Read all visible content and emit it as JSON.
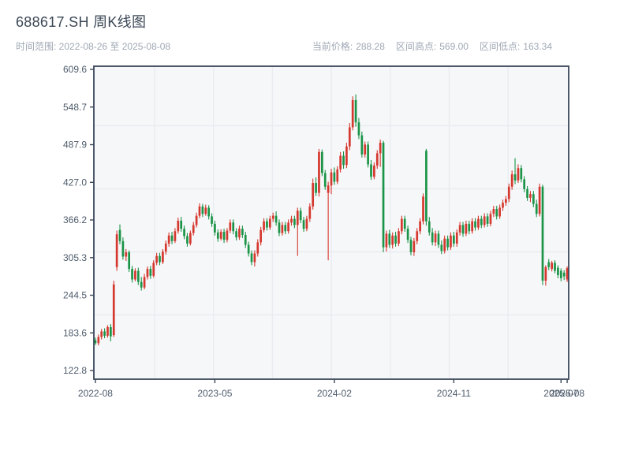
{
  "header": {
    "title": "688617.SH 周K线图",
    "subtitle": "时间范围: 2022-08-26 至 2025-08-08",
    "stats": {
      "current_label": "当前价格:",
      "current_value": "288.28",
      "high_label": "区间高点:",
      "high_value": "569.00",
      "low_label": "区间低点:",
      "low_value": "163.34"
    }
  },
  "colors": {
    "up": "#d5382e",
    "down": "#1b9447",
    "plot_bg": "#f6f7f9",
    "grid": "#e9ecf1",
    "spine": "#3a4759",
    "tick_label": "#4e5b6b",
    "title_text": "#3c4856",
    "muted_text": "#9fa8b4"
  },
  "chart_data": {
    "type": "candlestick",
    "title": "688617.SH 周K线图",
    "period": "weekly",
    "start_date": "2022-08-26",
    "end_date": "2025-08-08",
    "current_price": 288.28,
    "range_high": 569.0,
    "range_low": 163.34,
    "ylim": [
      112,
      616
    ],
    "grid": "on",
    "y_ticks": [
      609.6,
      548.7,
      487.9,
      427.0,
      366.2,
      305.3,
      244.5,
      183.6,
      122.8
    ],
    "x_ticks": [
      {
        "week": 0,
        "label": "2022-08"
      },
      {
        "week": 39,
        "label": "2023-05"
      },
      {
        "week": 78,
        "label": "2024-02"
      },
      {
        "week": 117,
        "label": "2024-11"
      },
      {
        "week": 152,
        "label": "2025-07"
      },
      {
        "week": 154,
        "label": "2025-08"
      }
    ],
    "ohlc_note": "weekly candles [open,high,low,close], week 0 = 2022-08-26",
    "candles_ohlc": [
      [
        172,
        176,
        164,
        167
      ],
      [
        167,
        181,
        163.34,
        177
      ],
      [
        177,
        190,
        173,
        186
      ],
      [
        186,
        191,
        175,
        179
      ],
      [
        179,
        196,
        176,
        193
      ],
      [
        193,
        198,
        170,
        178
      ],
      [
        180,
        268,
        177,
        262
      ],
      [
        290,
        349,
        284,
        343
      ],
      [
        350,
        359,
        327,
        332
      ],
      [
        332,
        338,
        302,
        307
      ],
      [
        307,
        319,
        300,
        314
      ],
      [
        314,
        317,
        282,
        287
      ],
      [
        287,
        292,
        265,
        270
      ],
      [
        270,
        288,
        267,
        284
      ],
      [
        284,
        289,
        261,
        266
      ],
      [
        266,
        274,
        252,
        257
      ],
      [
        257,
        279,
        254,
        274
      ],
      [
        274,
        291,
        270,
        287
      ],
      [
        287,
        292,
        271,
        276
      ],
      [
        276,
        301,
        273,
        297
      ],
      [
        297,
        313,
        293,
        308
      ],
      [
        308,
        313,
        293,
        298
      ],
      [
        298,
        319,
        295,
        315
      ],
      [
        315,
        333,
        310,
        328
      ],
      [
        328,
        346,
        323,
        341
      ],
      [
        341,
        347,
        327,
        332
      ],
      [
        332,
        353,
        329,
        348
      ],
      [
        348,
        370,
        344,
        365
      ],
      [
        365,
        371,
        347,
        352
      ],
      [
        352,
        357,
        335,
        340
      ],
      [
        340,
        345,
        323,
        328
      ],
      [
        328,
        349,
        325,
        345
      ],
      [
        345,
        363,
        341,
        358
      ],
      [
        358,
        378,
        354,
        373
      ],
      [
        373,
        393,
        369,
        388
      ],
      [
        388,
        392,
        371,
        376
      ],
      [
        376,
        391,
        373,
        386
      ],
      [
        386,
        390,
        367,
        372
      ],
      [
        372,
        377,
        355,
        360
      ],
      [
        360,
        365,
        341,
        346
      ],
      [
        346,
        351,
        331,
        336
      ],
      [
        336,
        351,
        333,
        347
      ],
      [
        347,
        352,
        329,
        334
      ],
      [
        334,
        353,
        330,
        349
      ],
      [
        349,
        367,
        345,
        362
      ],
      [
        362,
        367,
        343,
        348
      ],
      [
        348,
        353,
        333,
        338
      ],
      [
        338,
        357,
        334,
        352
      ],
      [
        352,
        357,
        337,
        342
      ],
      [
        342,
        347,
        321,
        326
      ],
      [
        326,
        331,
        307,
        312
      ],
      [
        312,
        317,
        293,
        298
      ],
      [
        298,
        317,
        291,
        312
      ],
      [
        312,
        335,
        307,
        330
      ],
      [
        330,
        355,
        325,
        350
      ],
      [
        350,
        369,
        346,
        364
      ],
      [
        364,
        369,
        349,
        354
      ],
      [
        354,
        373,
        350,
        368
      ],
      [
        368,
        378,
        363,
        373
      ],
      [
        373,
        380,
        357,
        362
      ],
      [
        362,
        367,
        340,
        345
      ],
      [
        345,
        363,
        341,
        358
      ],
      [
        358,
        363,
        343,
        348
      ],
      [
        348,
        367,
        344,
        362
      ],
      [
        362,
        373,
        357,
        368
      ],
      [
        368,
        373,
        353,
        358
      ],
      [
        358,
        386,
        308,
        381
      ],
      [
        381,
        386,
        361,
        366
      ],
      [
        366,
        371,
        347,
        352
      ],
      [
        352,
        373,
        348,
        368
      ],
      [
        368,
        393,
        363,
        388
      ],
      [
        388,
        433,
        383,
        426
      ],
      [
        426,
        435,
        405,
        410
      ],
      [
        410,
        481,
        404,
        476
      ],
      [
        476,
        480,
        437,
        442
      ],
      [
        442,
        447,
        415,
        420
      ],
      [
        410,
        428,
        301,
        422
      ],
      [
        422,
        449,
        408,
        443
      ],
      [
        443,
        451,
        423,
        428
      ],
      [
        428,
        453,
        424,
        448
      ],
      [
        448,
        476,
        443,
        470
      ],
      [
        470,
        477,
        449,
        455
      ],
      [
        455,
        491,
        450,
        485
      ],
      [
        485,
        523,
        479,
        516
      ],
      [
        516,
        566,
        511,
        560
      ],
      [
        560,
        569,
        517,
        524
      ],
      [
        524,
        531,
        497,
        503
      ],
      [
        503,
        509,
        467,
        472
      ],
      [
        472,
        493,
        467,
        488
      ],
      [
        488,
        493,
        451,
        456
      ],
      [
        456,
        463,
        431,
        436
      ],
      [
        436,
        459,
        432,
        454
      ],
      [
        454,
        479,
        449,
        474
      ],
      [
        474,
        496,
        452,
        491
      ],
      [
        491,
        494,
        314,
        322
      ],
      [
        322,
        349,
        315,
        344
      ],
      [
        344,
        350,
        321,
        326
      ],
      [
        326,
        346,
        320,
        341
      ],
      [
        341,
        347,
        323,
        328
      ],
      [
        328,
        353,
        324,
        348
      ],
      [
        348,
        373,
        343,
        368
      ],
      [
        368,
        373,
        347,
        352
      ],
      [
        352,
        357,
        329,
        334
      ],
      [
        334,
        339,
        309,
        314
      ],
      [
        314,
        337,
        308,
        332
      ],
      [
        332,
        353,
        327,
        348
      ],
      [
        348,
        369,
        343,
        364
      ],
      [
        364,
        409,
        359,
        404
      ],
      [
        478,
        481,
        357,
        364
      ],
      [
        364,
        371,
        341,
        346
      ],
      [
        346,
        353,
        325,
        330
      ],
      [
        330,
        349,
        324,
        344
      ],
      [
        344,
        349,
        321,
        326
      ],
      [
        326,
        333,
        311,
        316
      ],
      [
        316,
        341,
        312,
        336
      ],
      [
        336,
        341,
        317,
        322
      ],
      [
        322,
        346,
        318,
        341
      ],
      [
        341,
        347,
        323,
        328
      ],
      [
        328,
        351,
        323,
        346
      ],
      [
        346,
        363,
        341,
        358
      ],
      [
        358,
        363,
        339,
        344
      ],
      [
        344,
        365,
        340,
        360
      ],
      [
        360,
        365,
        343,
        348
      ],
      [
        348,
        369,
        344,
        364
      ],
      [
        364,
        369,
        349,
        354
      ],
      [
        354,
        373,
        350,
        368
      ],
      [
        368,
        373,
        353,
        358
      ],
      [
        358,
        377,
        354,
        372
      ],
      [
        372,
        377,
        355,
        360
      ],
      [
        360,
        381,
        356,
        376
      ],
      [
        376,
        389,
        371,
        384
      ],
      [
        384,
        389,
        367,
        372
      ],
      [
        372,
        391,
        368,
        386
      ],
      [
        386,
        399,
        381,
        394
      ],
      [
        394,
        405,
        389,
        400
      ],
      [
        400,
        425,
        395,
        420
      ],
      [
        420,
        446,
        415,
        440
      ],
      [
        440,
        466,
        424,
        430
      ],
      [
        430,
        456,
        426,
        450
      ],
      [
        450,
        455,
        427,
        432
      ],
      [
        432,
        437,
        411,
        416
      ],
      [
        416,
        421,
        397,
        402
      ],
      [
        402,
        413,
        395,
        408
      ],
      [
        408,
        413,
        387,
        392
      ],
      [
        392,
        399,
        371,
        376
      ],
      [
        376,
        425,
        372,
        420
      ],
      [
        420,
        423,
        261,
        268
      ],
      [
        268,
        293,
        260,
        290
      ],
      [
        298,
        303,
        285,
        290
      ],
      [
        287,
        300,
        283,
        297
      ],
      [
        297,
        301,
        280,
        284
      ],
      [
        289,
        293,
        272,
        277
      ],
      [
        284,
        288,
        267,
        272
      ],
      [
        281,
        285,
        269,
        275
      ],
      [
        270,
        291,
        266,
        288.28
      ]
    ]
  }
}
